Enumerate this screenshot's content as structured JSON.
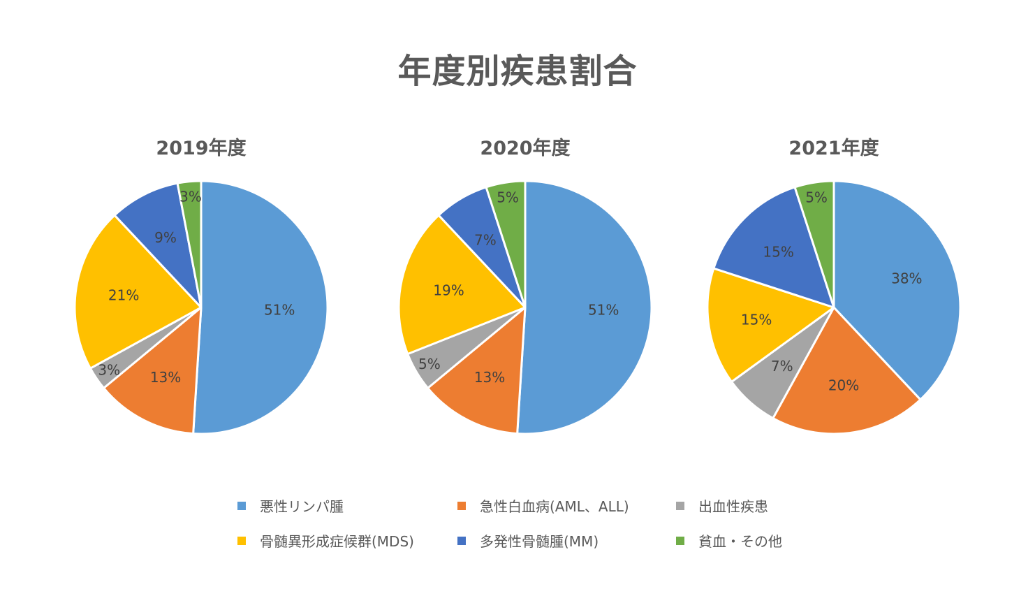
{
  "title": "年度別疾患割合",
  "legend": [
    {
      "label": "悪性リンパ腫",
      "color": "#5B9BD5"
    },
    {
      "label": "急性白血病(AML、ALL)",
      "color": "#ED7D31"
    },
    {
      "label": "出血性疾患",
      "color": "#A5A5A5"
    },
    {
      "label": "骨髄異形成症候群(MDS)",
      "color": "#FFC000"
    },
    {
      "label": "多発性骨髄腫(MM)",
      "color": "#4472C4"
    },
    {
      "label": "貧血・その他",
      "color": "#70AD47"
    }
  ],
  "chart_data": [
    {
      "type": "pie",
      "title": "2019年度",
      "categories": [
        "悪性リンパ腫",
        "急性白血病(AML、ALL)",
        "出血性疾患",
        "骨髄異形成症候群(MDS)",
        "多発性骨髄腫(MM)",
        "貧血・その他"
      ],
      "values": [
        51,
        13,
        3,
        21,
        9,
        3
      ],
      "labels": [
        "51%",
        "13%",
        "3%",
        "21%",
        "9%",
        "3%"
      ],
      "colors": [
        "#5B9BD5",
        "#ED7D31",
        "#A5A5A5",
        "#FFC000",
        "#4472C4",
        "#70AD47"
      ],
      "legend_position": "bottom"
    },
    {
      "type": "pie",
      "title": "2020年度",
      "categories": [
        "悪性リンパ腫",
        "急性白血病(AML、ALL)",
        "出血性疾患",
        "骨髄異形成症候群(MDS)",
        "多発性骨髄腫(MM)",
        "貧血・その他"
      ],
      "values": [
        51,
        13,
        5,
        19,
        7,
        5
      ],
      "labels": [
        "51%",
        "13%",
        "5%",
        "19%",
        "7%",
        "5%"
      ],
      "colors": [
        "#5B9BD5",
        "#ED7D31",
        "#A5A5A5",
        "#FFC000",
        "#4472C4",
        "#70AD47"
      ],
      "legend_position": "bottom"
    },
    {
      "type": "pie",
      "title": "2021年度",
      "categories": [
        "悪性リンパ腫",
        "急性白血病(AML、ALL)",
        "出血性疾患",
        "骨髄異形成症候群(MDS)",
        "多発性骨髄腫(MM)",
        "貧血・その他"
      ],
      "values": [
        38,
        20,
        7,
        15,
        15,
        5
      ],
      "labels": [
        "38%",
        "20%",
        "7%",
        "15%",
        "15%",
        "5%"
      ],
      "colors": [
        "#5B9BD5",
        "#ED7D31",
        "#A5A5A5",
        "#FFC000",
        "#4472C4",
        "#70AD47"
      ],
      "legend_position": "bottom"
    }
  ]
}
